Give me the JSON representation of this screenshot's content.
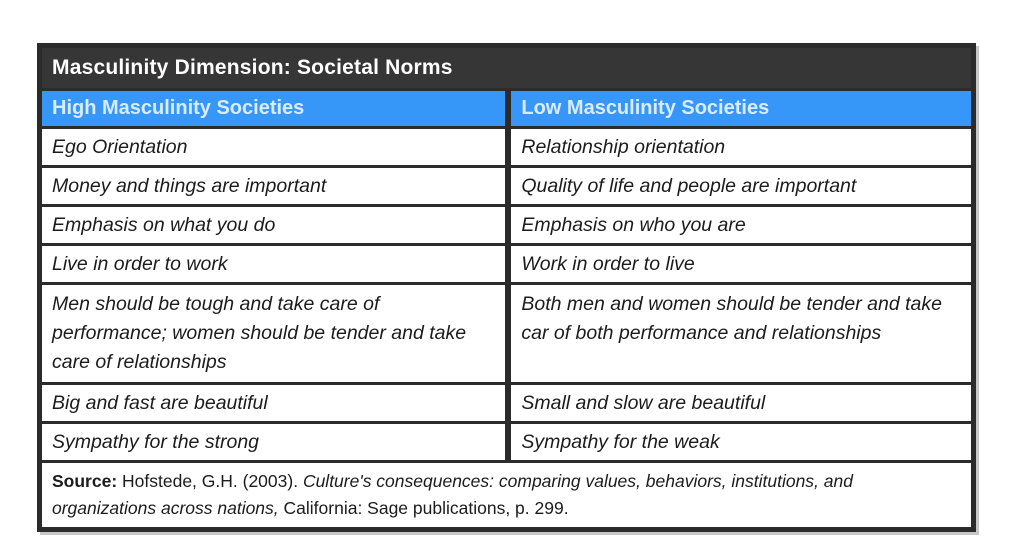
{
  "table": {
    "title": "Masculinity Dimension: Societal Norms",
    "columns": [
      "High Masculinity Societies",
      "Low Masculinity Societies"
    ],
    "rows": [
      [
        "Ego Orientation",
        "Relationship orientation"
      ],
      [
        "Money and things are important",
        "Quality of life and people are important"
      ],
      [
        "Emphasis on what you do",
        "Emphasis on who you are"
      ],
      [
        "Live in order to work",
        "Work in order to live"
      ],
      [
        "Men should be tough and take care of performance; women should be tender and take care of relationships",
        "Both men and women should be tender and take car of both performance and relationships"
      ],
      [
        "Big and fast are beautiful",
        "Small and slow are beautiful"
      ],
      [
        "Sympathy for the strong",
        "Sympathy for the weak"
      ]
    ],
    "source": {
      "label": "Source:",
      "normal1": " Hofstede, G.H. (2003). ",
      "italic": "Culture's consequences: comparing values, behaviors, institutions, and organizations across nations,",
      "normal2": " California: Sage publications, p. 299."
    }
  },
  "colors": {
    "page_bg": "#FFFFFF",
    "title_bar_bg": "#363636",
    "title_bar_text": "#FFFFFF",
    "header_bg": "#3797F8",
    "header_text": "#D9ECFD",
    "body_text": "#1C1C1C",
    "border": "#2B2B2B"
  }
}
